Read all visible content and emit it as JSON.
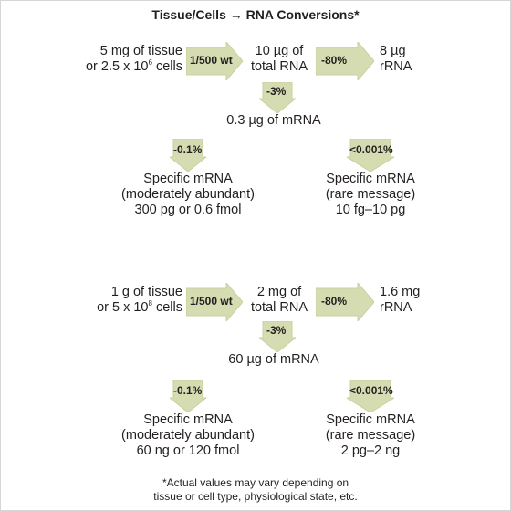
{
  "title": "Tissue/Cells → RNA Conversions*",
  "colors": {
    "arrow_fill": "#d6dcb1",
    "arrow_border": "#c9d09e",
    "text": "#231f20"
  },
  "block1": {
    "source_line1": "5 mg of tissue",
    "source_line2_pre": "or 2.5 x 10",
    "source_line2_sup": "6",
    "source_line2_post": " cells",
    "arrow_main": "1/500 wt",
    "total_line1": "10 µg of",
    "total_line2": "total RNA",
    "arrow_rrna": "-80%",
    "rrna_line1": "8 µg",
    "rrna_line2": "rRNA",
    "arrow_mrna": "-3%",
    "mrna": "0.3 µg of mRNA",
    "arrow_moderate": "-0.1%",
    "moderate_line1": "Specific mRNA",
    "moderate_line2": "(moderately abundant)",
    "moderate_line3": "300 pg or 0.6 fmol",
    "arrow_rare": "<0.001%",
    "rare_line1": "Specific mRNA",
    "rare_line2": "(rare message)",
    "rare_line3": "10 fg–10 pg"
  },
  "block2": {
    "source_line1": "1 g of tissue",
    "source_line2_pre": "or 5 x 10",
    "source_line2_sup": "8",
    "source_line2_post": " cells",
    "arrow_main": "1/500 wt",
    "total_line1": "2 mg of",
    "total_line2": "total RNA",
    "arrow_rrna": "-80%",
    "rrna_line1": "1.6 mg",
    "rrna_line2": "rRNA",
    "arrow_mrna": "-3%",
    "mrna": "60 µg of mRNA",
    "arrow_moderate": "-0.1%",
    "moderate_line1": "Specific mRNA",
    "moderate_line2": "(moderately abundant)",
    "moderate_line3": "60 ng or 120 fmol",
    "arrow_rare": "<0.001%",
    "rare_line1": "Specific mRNA",
    "rare_line2": "(rare message)",
    "rare_line3": "2 pg–2 ng"
  },
  "footnote_line1": "*Actual values may vary depending on",
  "footnote_line2": "tissue or cell type, physiological state, etc."
}
